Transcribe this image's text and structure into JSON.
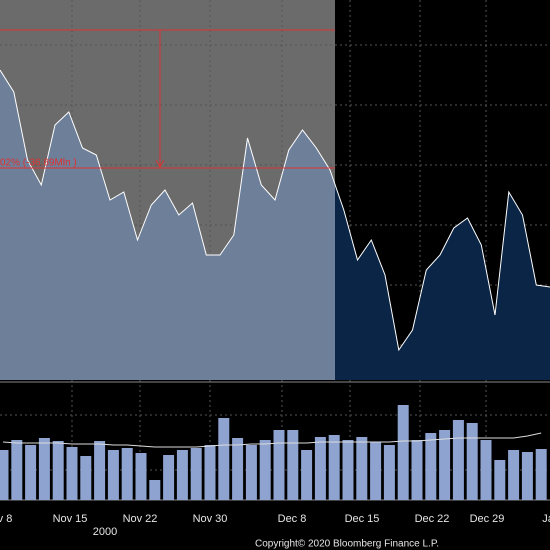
{
  "chart_data": {
    "type": "area",
    "annotation": "02% (-36.89Mln )",
    "year_label": "2000",
    "copyright": "Copyright© 2020 Bloomberg Finance L.P.",
    "xticks": [
      "v 8",
      "Nov 15",
      "Nov 22",
      "Nov 30",
      "Dec 8",
      "Dec 15",
      "Dec 22",
      "Dec 29",
      "Ja"
    ],
    "ylim": [
      0,
      380
    ],
    "series": [
      {
        "color": "#ffffff",
        "values": [
          310,
          288,
          220,
          195,
          255,
          268,
          232,
          225,
          180,
          188,
          140,
          175,
          190,
          165,
          177,
          125,
          125,
          145,
          242,
          195,
          180,
          230,
          250,
          232,
          210,
          170,
          120,
          140,
          105,
          30,
          50,
          110,
          125,
          152,
          162,
          135,
          65,
          188,
          165,
          95,
          93
        ]
      }
    ],
    "volume": {
      "type": "bar",
      "ylim": [
        0,
        115
      ],
      "color": "#8ea3d0",
      "values": [
        50,
        60,
        55,
        62,
        59,
        53,
        44,
        59,
        50,
        52,
        47,
        20,
        45,
        50,
        52,
        55,
        82,
        62,
        55,
        60,
        70,
        70,
        50,
        63,
        65,
        60,
        63,
        58,
        55,
        95,
        60,
        67,
        70,
        80,
        77,
        60,
        40,
        50,
        48,
        51
      ],
      "average": [
        58,
        57,
        57,
        57,
        57,
        56,
        56,
        56,
        55,
        55,
        54,
        53,
        53,
        53,
        53,
        54,
        55,
        55,
        56,
        56,
        57,
        57,
        57,
        58,
        58,
        58,
        58,
        58,
        58,
        59,
        59,
        60,
        61,
        62,
        62,
        62,
        62,
        62,
        64,
        67
      ]
    }
  }
}
